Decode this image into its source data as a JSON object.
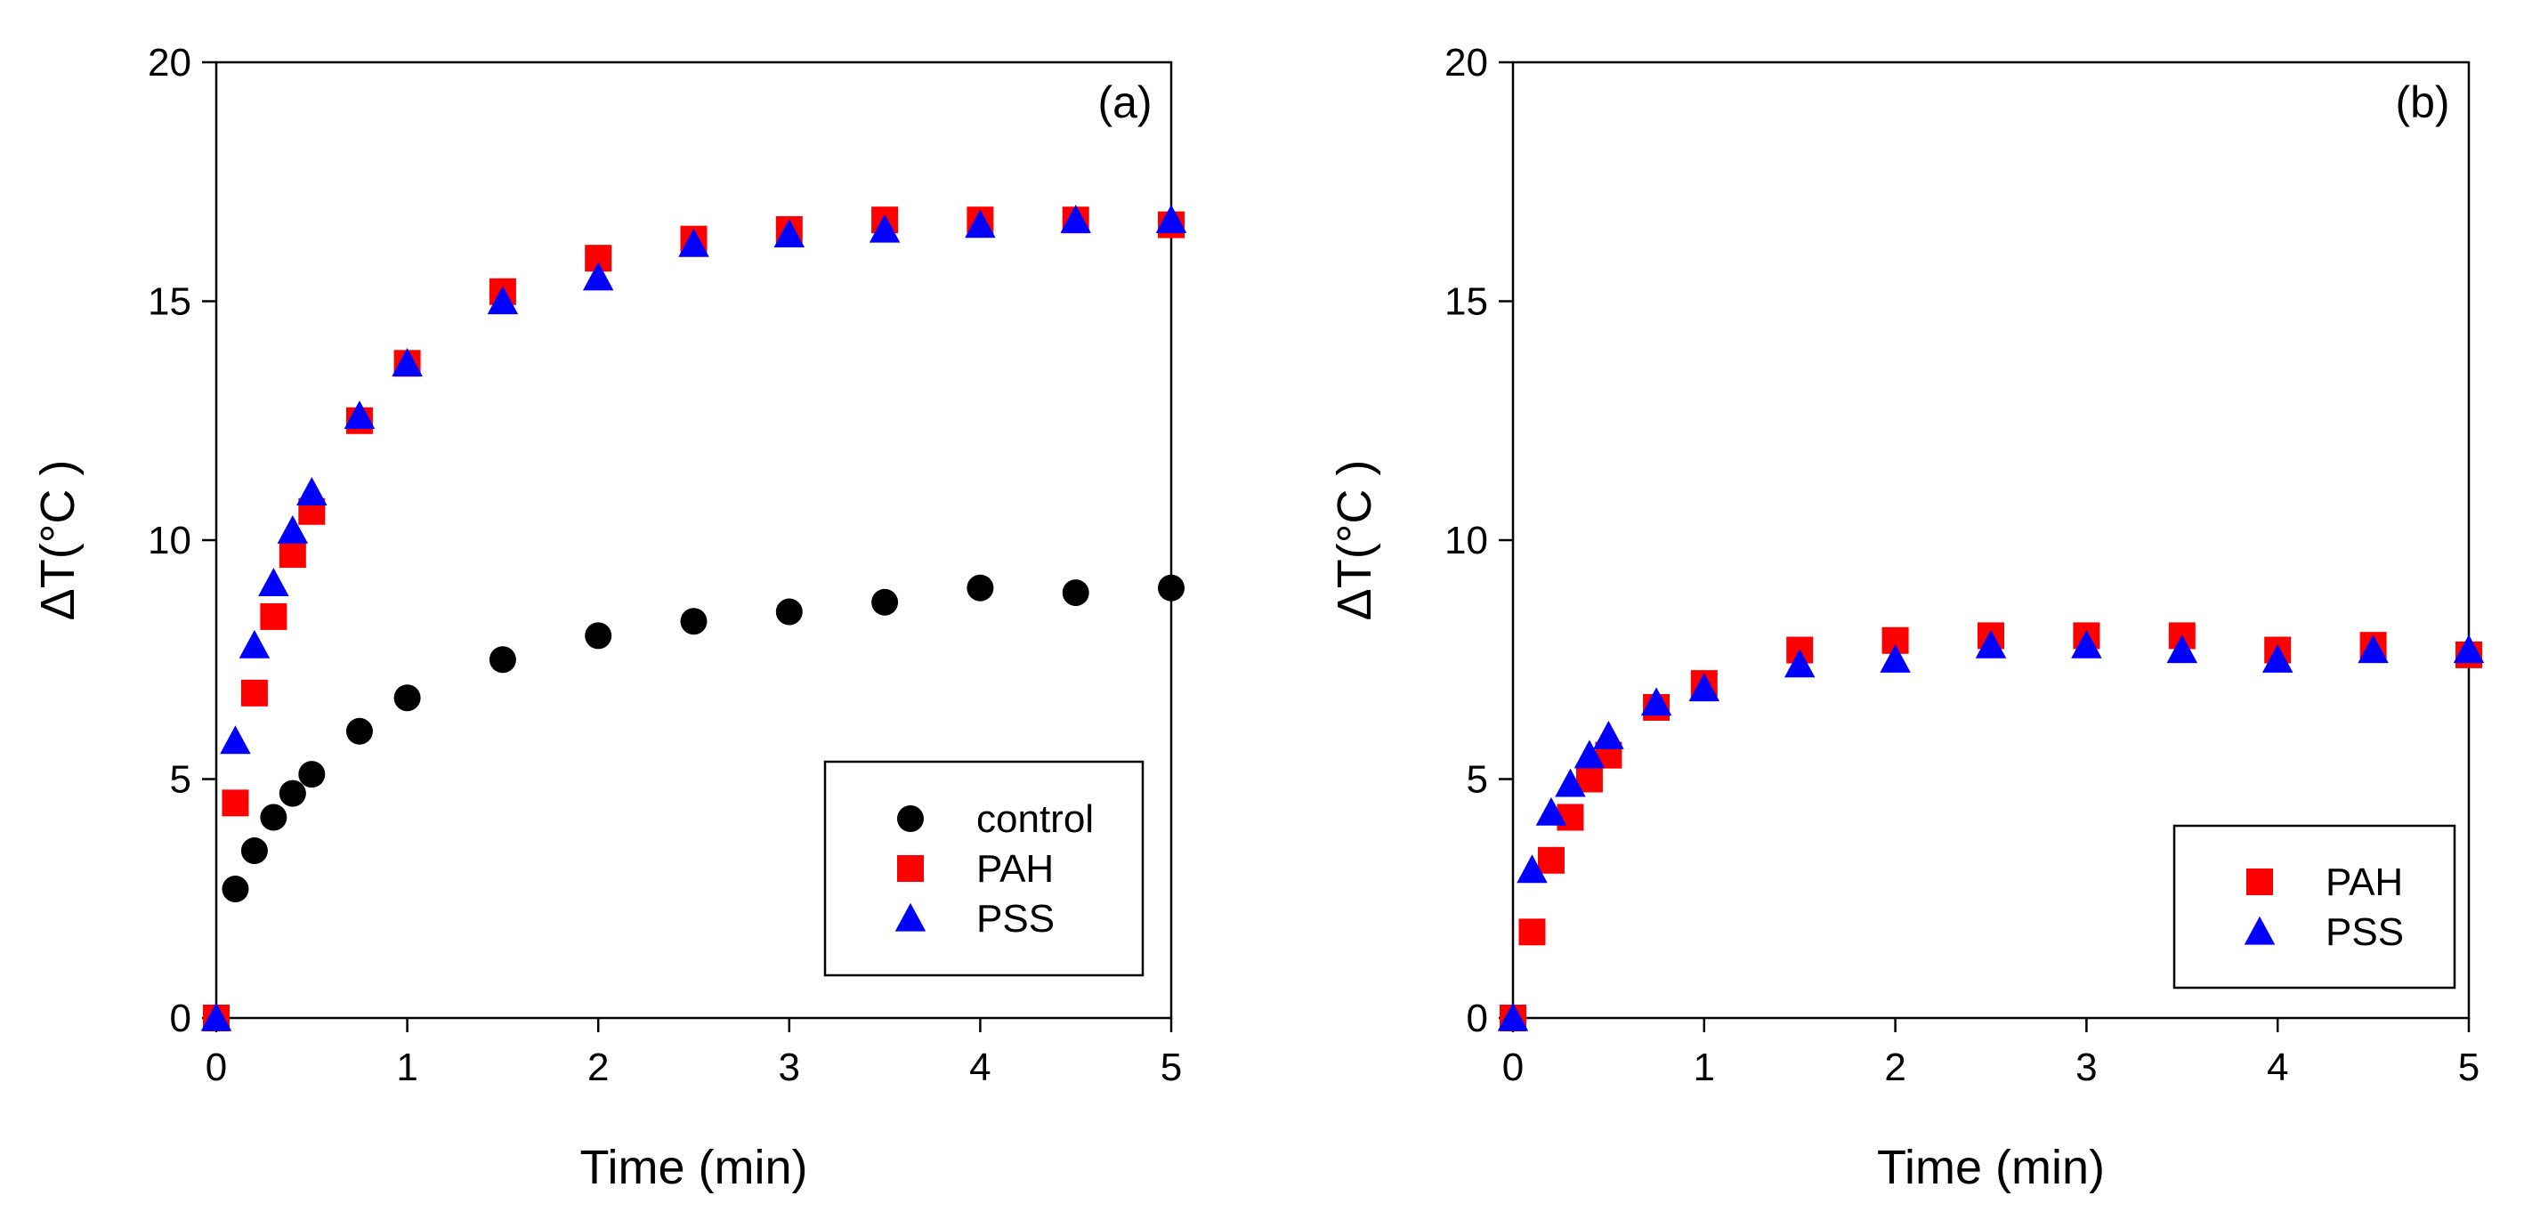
{
  "chart_data": [
    {
      "type": "scatter",
      "panel_label": "(a)",
      "xlabel": "Time (min)",
      "ylabel": "ΔT(°C )",
      "xlim": [
        0,
        5
      ],
      "ylim": [
        0,
        20
      ],
      "xticks": [
        0,
        1,
        2,
        3,
        4,
        5
      ],
      "yticks": [
        0,
        5,
        10,
        15,
        20
      ],
      "grid": false,
      "legend_position": "bottom-right",
      "series": [
        {
          "name": "control",
          "marker": "circle",
          "color": "#000000",
          "x": [
            0,
            0.1,
            0.2,
            0.3,
            0.4,
            0.5,
            0.75,
            1,
            1.5,
            2,
            2.5,
            3,
            3.5,
            4,
            4.5,
            5
          ],
          "y": [
            0,
            2.7,
            3.5,
            4.2,
            4.7,
            5.1,
            6.0,
            6.7,
            7.5,
            8.0,
            8.3,
            8.5,
            8.7,
            9.0,
            8.9,
            9.0
          ]
        },
        {
          "name": "PAH",
          "marker": "square",
          "color": "#ff0000",
          "x": [
            0,
            0.1,
            0.2,
            0.3,
            0.4,
            0.5,
            0.75,
            1,
            1.5,
            2,
            2.5,
            3,
            3.5,
            4,
            4.5,
            5
          ],
          "y": [
            0,
            4.5,
            6.8,
            8.4,
            9.7,
            10.6,
            12.5,
            13.7,
            15.2,
            15.9,
            16.3,
            16.5,
            16.7,
            16.7,
            16.7,
            16.6
          ]
        },
        {
          "name": "PSS",
          "marker": "triangle",
          "color": "#0000ff",
          "x": [
            0,
            0.1,
            0.2,
            0.3,
            0.4,
            0.5,
            0.75,
            1,
            1.5,
            2,
            2.5,
            3,
            3.5,
            4,
            4.5,
            5
          ],
          "y": [
            0,
            5.8,
            7.8,
            9.1,
            10.2,
            11.0,
            12.6,
            13.7,
            15.0,
            15.5,
            16.2,
            16.4,
            16.5,
            16.6,
            16.7,
            16.7
          ]
        }
      ]
    },
    {
      "type": "scatter",
      "panel_label": "(b)",
      "xlabel": "Time (min)",
      "ylabel": "ΔT(°C )",
      "xlim": [
        0,
        5
      ],
      "ylim": [
        0,
        20
      ],
      "xticks": [
        0,
        1,
        2,
        3,
        4,
        5
      ],
      "yticks": [
        0,
        5,
        10,
        15,
        20
      ],
      "grid": false,
      "legend_position": "bottom-right",
      "series": [
        {
          "name": "PAH",
          "marker": "square",
          "color": "#ff0000",
          "x": [
            0,
            0.1,
            0.2,
            0.3,
            0.4,
            0.5,
            0.75,
            1,
            1.5,
            2,
            2.5,
            3,
            3.5,
            4,
            4.5,
            5
          ],
          "y": [
            0,
            1.8,
            3.3,
            4.2,
            5.0,
            5.5,
            6.5,
            7.0,
            7.7,
            7.9,
            8.0,
            8.0,
            8.0,
            7.7,
            7.8,
            7.6
          ]
        },
        {
          "name": "PSS",
          "marker": "triangle",
          "color": "#0000ff",
          "x": [
            0,
            0.1,
            0.2,
            0.3,
            0.4,
            0.5,
            0.75,
            1,
            1.5,
            2,
            2.5,
            3,
            3.5,
            4,
            4.5,
            5
          ],
          "y": [
            0,
            3.1,
            4.3,
            4.9,
            5.5,
            5.9,
            6.6,
            6.9,
            7.4,
            7.5,
            7.8,
            7.8,
            7.7,
            7.5,
            7.7,
            7.7
          ]
        }
      ]
    }
  ]
}
